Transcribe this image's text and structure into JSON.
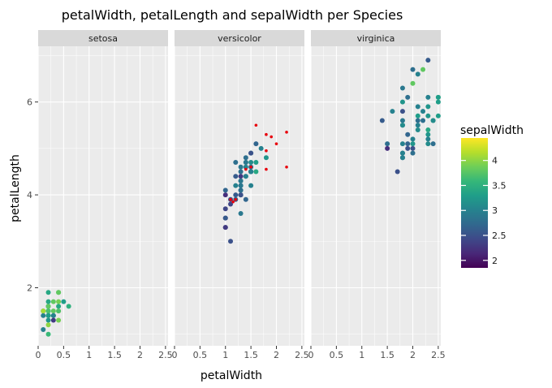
{
  "chart_data": {
    "type": "scatter",
    "title": "petalWidth, petalLength and sepalWidth per Species",
    "xlabel": "petalWidth",
    "ylabel": "petalLength",
    "xlim": [
      0,
      2.55
    ],
    "ylim": [
      0.75,
      7.2
    ],
    "x_ticks": [
      0,
      0.5,
      1,
      1.5,
      2,
      2.5
    ],
    "x_tick_labels": [
      "0",
      "0.5",
      "1",
      "1.5",
      "2",
      "2.5"
    ],
    "y_ticks": [
      2,
      4,
      6
    ],
    "y_tick_labels": [
      "2",
      "4",
      "6"
    ],
    "grid": true,
    "facets": [
      "setosa",
      "versicolor",
      "virginica"
    ],
    "legend": {
      "title": "sepalWidth",
      "position": "right",
      "min": 1.85,
      "max": 4.45,
      "ticks": [
        2,
        2.5,
        3,
        3.5,
        4
      ],
      "tick_labels": [
        "2",
        "2.5",
        "3",
        "3.5",
        "4"
      ]
    },
    "colors": {
      "panel_bg": "#ebebeb",
      "strip_bg": "#d9d9d9",
      "grid": "#ffffff",
      "highlight": "#e8000b",
      "viridis": [
        "#440154",
        "#482878",
        "#3e4989",
        "#31688e",
        "#26828e",
        "#1f9e89",
        "#35b779",
        "#6ece58",
        "#b5de2b",
        "#fde725"
      ]
    },
    "series": [
      {
        "facet": "setosa",
        "points": [
          [
            0.2,
            1.4,
            3.5
          ],
          [
            0.2,
            1.4,
            3.0
          ],
          [
            0.2,
            1.3,
            3.2
          ],
          [
            0.2,
            1.5,
            3.1
          ],
          [
            0.2,
            1.4,
            3.6
          ],
          [
            0.4,
            1.7,
            3.9
          ],
          [
            0.3,
            1.4,
            3.4
          ],
          [
            0.2,
            1.5,
            3.4
          ],
          [
            0.2,
            1.4,
            2.9
          ],
          [
            0.1,
            1.5,
            3.1
          ],
          [
            0.2,
            1.5,
            3.7
          ],
          [
            0.2,
            1.6,
            3.4
          ],
          [
            0.1,
            1.4,
            3.0
          ],
          [
            0.1,
            1.1,
            3.0
          ],
          [
            0.2,
            1.2,
            4.0
          ],
          [
            0.4,
            1.5,
            4.4
          ],
          [
            0.4,
            1.3,
            3.9
          ],
          [
            0.3,
            1.4,
            3.5
          ],
          [
            0.3,
            1.7,
            3.8
          ],
          [
            0.3,
            1.5,
            3.8
          ],
          [
            0.2,
            1.7,
            3.4
          ],
          [
            0.4,
            1.5,
            3.7
          ],
          [
            0.2,
            1.0,
            3.6
          ],
          [
            0.5,
            1.7,
            3.3
          ],
          [
            0.2,
            1.9,
            3.4
          ],
          [
            0.2,
            1.6,
            3.0
          ],
          [
            0.4,
            1.6,
            3.4
          ],
          [
            0.1,
            1.5,
            4.1
          ],
          [
            0.2,
            1.4,
            4.2
          ],
          [
            0.4,
            1.9,
            3.8
          ],
          [
            0.3,
            1.3,
            2.3
          ],
          [
            0.6,
            1.6,
            3.5
          ],
          [
            0.4,
            1.9,
            3.8
          ],
          [
            0.3,
            1.4,
            3.0
          ],
          [
            0.2,
            1.6,
            3.8
          ],
          [
            0.2,
            1.4,
            3.2
          ],
          [
            0.2,
            1.5,
            3.7
          ],
          [
            0.2,
            1.4,
            3.3
          ]
        ]
      },
      {
        "facet": "versicolor",
        "points": [
          [
            1.4,
            4.7,
            3.2
          ],
          [
            1.5,
            4.5,
            3.2
          ],
          [
            1.5,
            4.9,
            3.1
          ],
          [
            1.3,
            4.0,
            2.3
          ],
          [
            1.5,
            4.6,
            2.8
          ],
          [
            1.3,
            4.5,
            2.8
          ],
          [
            1.6,
            4.7,
            3.3
          ],
          [
            1.0,
            3.3,
            2.4
          ],
          [
            1.3,
            4.6,
            2.9
          ],
          [
            1.4,
            3.9,
            2.7
          ],
          [
            1.0,
            3.5,
            2.0
          ],
          [
            1.5,
            4.2,
            3.0
          ],
          [
            1.0,
            4.0,
            2.2
          ],
          [
            1.4,
            4.7,
            2.9
          ],
          [
            1.3,
            3.6,
            2.9
          ],
          [
            1.4,
            4.4,
            3.1
          ],
          [
            1.5,
            4.5,
            3.0
          ],
          [
            1.0,
            4.1,
            2.7
          ],
          [
            1.5,
            4.5,
            2.2
          ],
          [
            1.1,
            3.9,
            2.5
          ],
          [
            1.8,
            4.8,
            3.2
          ],
          [
            1.3,
            4.0,
            2.8
          ],
          [
            1.5,
            4.9,
            2.5
          ],
          [
            1.2,
            4.7,
            2.8
          ],
          [
            1.3,
            4.3,
            2.9
          ],
          [
            1.4,
            4.4,
            3.0
          ],
          [
            1.4,
            4.8,
            2.8
          ],
          [
            1.7,
            5.0,
            3.0
          ],
          [
            1.5,
            4.5,
            2.9
          ],
          [
            1.0,
            3.5,
            2.6
          ],
          [
            1.1,
            3.8,
            2.4
          ],
          [
            1.0,
            3.7,
            2.4
          ],
          [
            1.2,
            3.9,
            2.7
          ],
          [
            1.6,
            5.1,
            2.7
          ],
          [
            1.5,
            4.5,
            3.0
          ],
          [
            1.6,
            4.5,
            3.4
          ],
          [
            1.5,
            4.7,
            3.1
          ],
          [
            1.3,
            4.4,
            2.3
          ],
          [
            1.3,
            4.1,
            3.0
          ],
          [
            1.3,
            4.0,
            2.5
          ],
          [
            1.2,
            4.4,
            2.6
          ],
          [
            1.4,
            4.6,
            3.0
          ],
          [
            1.2,
            4.0,
            2.6
          ],
          [
            1.0,
            3.3,
            2.3
          ],
          [
            1.3,
            4.2,
            2.7
          ],
          [
            1.2,
            4.2,
            3.0
          ],
          [
            1.3,
            4.2,
            2.9
          ],
          [
            1.3,
            4.3,
            2.9
          ],
          [
            1.1,
            3.0,
            2.5
          ],
          [
            1.3,
            4.1,
            2.8
          ]
        ]
      },
      {
        "facet": "virginica",
        "points": [
          [
            2.5,
            6.0,
            3.3
          ],
          [
            1.9,
            5.1,
            2.7
          ],
          [
            2.1,
            5.9,
            3.0
          ],
          [
            1.8,
            5.6,
            2.9
          ],
          [
            2.2,
            5.8,
            3.0
          ],
          [
            2.1,
            6.6,
            3.0
          ],
          [
            1.7,
            4.5,
            2.5
          ],
          [
            1.8,
            6.3,
            2.9
          ],
          [
            1.8,
            5.8,
            2.5
          ],
          [
            2.5,
            6.1,
            3.6
          ],
          [
            2.0,
            5.1,
            3.2
          ],
          [
            1.9,
            5.3,
            2.7
          ],
          [
            2.1,
            5.5,
            3.0
          ],
          [
            2.0,
            5.0,
            2.5
          ],
          [
            2.4,
            5.1,
            2.8
          ],
          [
            2.3,
            5.3,
            3.2
          ],
          [
            1.8,
            5.5,
            3.0
          ],
          [
            2.2,
            6.7,
            3.8
          ],
          [
            2.3,
            6.9,
            2.6
          ],
          [
            1.5,
            5.0,
            2.2
          ],
          [
            2.3,
            5.7,
            3.2
          ],
          [
            2.0,
            4.9,
            2.8
          ],
          [
            2.0,
            6.7,
            2.8
          ],
          [
            1.8,
            4.9,
            2.7
          ],
          [
            2.1,
            5.7,
            3.3
          ],
          [
            1.8,
            6.0,
            3.2
          ],
          [
            1.8,
            4.8,
            2.8
          ],
          [
            1.8,
            4.9,
            3.0
          ],
          [
            2.1,
            5.6,
            2.8
          ],
          [
            1.6,
            5.8,
            3.0
          ],
          [
            1.9,
            6.1,
            2.8
          ],
          [
            2.0,
            6.4,
            3.8
          ],
          [
            2.2,
            5.6,
            2.8
          ],
          [
            1.5,
            5.1,
            2.8
          ],
          [
            1.4,
            5.6,
            2.6
          ],
          [
            2.3,
            6.1,
            3.0
          ],
          [
            2.4,
            5.6,
            3.4
          ],
          [
            1.8,
            5.5,
            3.1
          ],
          [
            1.8,
            4.8,
            3.0
          ],
          [
            2.1,
            5.4,
            3.1
          ],
          [
            2.4,
            5.6,
            3.1
          ],
          [
            2.3,
            5.1,
            3.1
          ],
          [
            2.3,
            5.9,
            3.2
          ],
          [
            2.5,
            5.7,
            3.3
          ],
          [
            2.3,
            5.2,
            3.0
          ],
          [
            1.9,
            5.0,
            2.5
          ],
          [
            2.0,
            5.2,
            3.0
          ],
          [
            2.3,
            5.4,
            3.4
          ],
          [
            1.8,
            5.1,
            3.0
          ],
          [
            2.5,
            6.1,
            3.3
          ]
        ]
      }
    ],
    "highlight_points": {
      "facet": "versicolor",
      "color": "#e8000b",
      "points": [
        [
          1.6,
          5.5
        ],
        [
          1.8,
          5.3
        ],
        [
          1.9,
          5.25
        ],
        [
          2.2,
          5.35
        ],
        [
          2.0,
          5.1
        ],
        [
          1.8,
          4.95
        ],
        [
          2.2,
          4.6
        ],
        [
          1.8,
          4.55
        ],
        [
          1.4,
          4.55
        ],
        [
          1.5,
          4.6
        ],
        [
          1.1,
          3.9
        ],
        [
          1.15,
          3.85
        ],
        [
          1.2,
          3.9
        ]
      ]
    }
  }
}
